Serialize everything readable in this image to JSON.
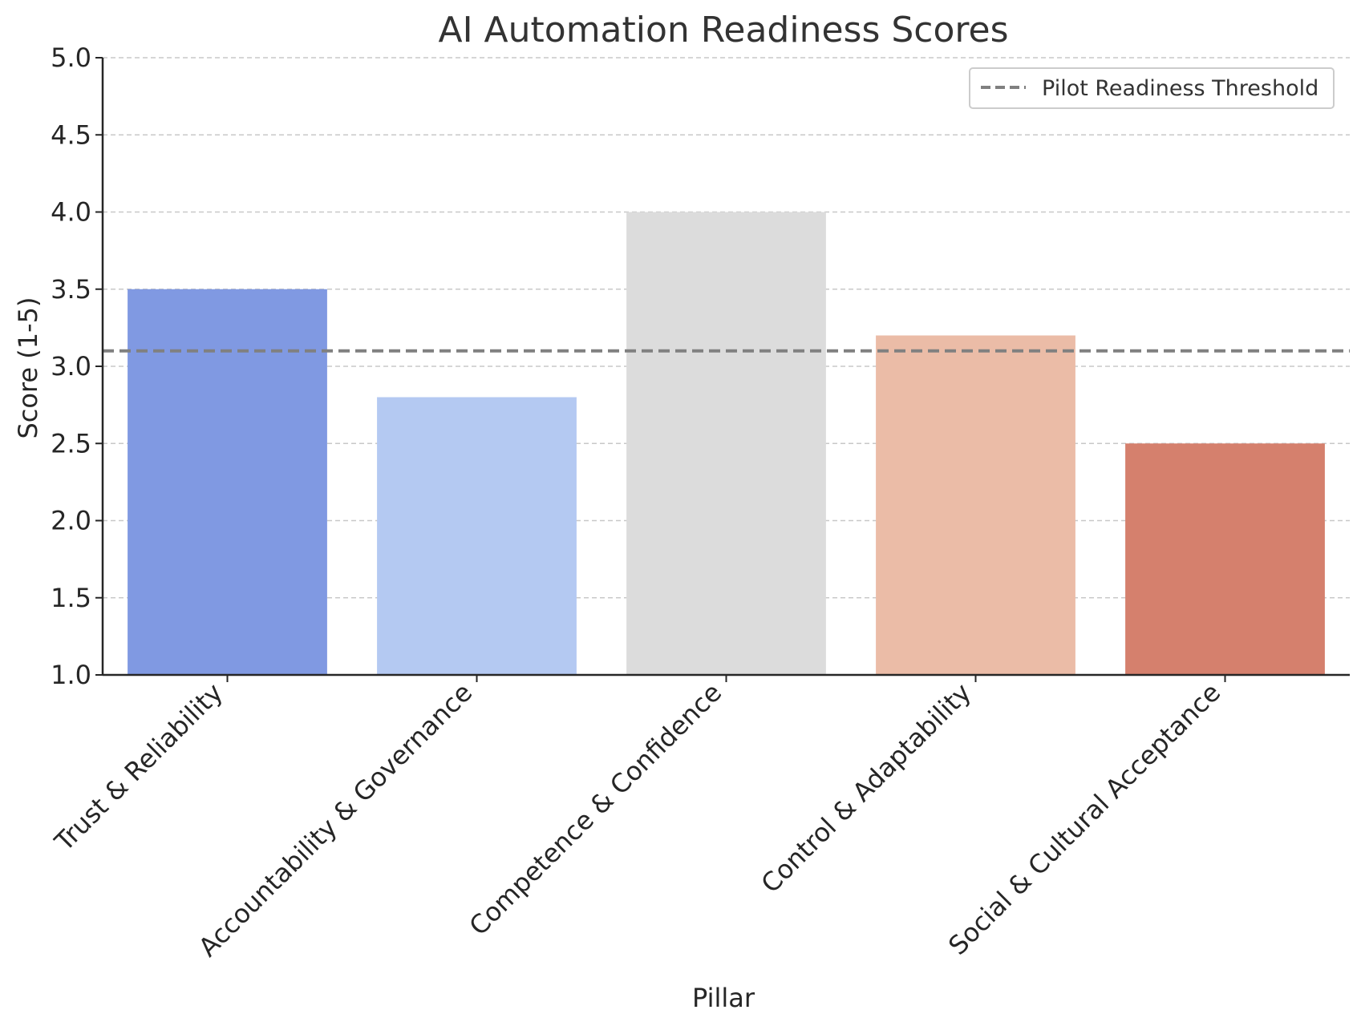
{
  "chart_data": {
    "type": "bar",
    "title": "AI Automation Readiness Scores",
    "xlabel": "Pillar",
    "ylabel": "Score (1-5)",
    "categories": [
      "Trust & Reliability",
      "Accountability & Governance",
      "Competence & Confidence",
      "Control & Adaptability",
      "Social & Cultural Acceptance"
    ],
    "values": [
      3.5,
      2.8,
      4.0,
      3.2,
      2.5
    ],
    "bar_colors": [
      "#8099e2",
      "#b4c9f2",
      "#dcdcdc",
      "#ebbca7",
      "#d5806d"
    ],
    "ylim": [
      1.0,
      5.0
    ],
    "yticks": [
      "1.0",
      "1.5",
      "2.0",
      "2.5",
      "3.0",
      "3.5",
      "4.0",
      "4.5",
      "5.0"
    ],
    "grid": "horizontal dashed",
    "threshold": {
      "label": "Pilot Readiness Threshold",
      "value": 3.1,
      "color": "#808080",
      "style": "dashed"
    },
    "legend_position": "top-right"
  }
}
